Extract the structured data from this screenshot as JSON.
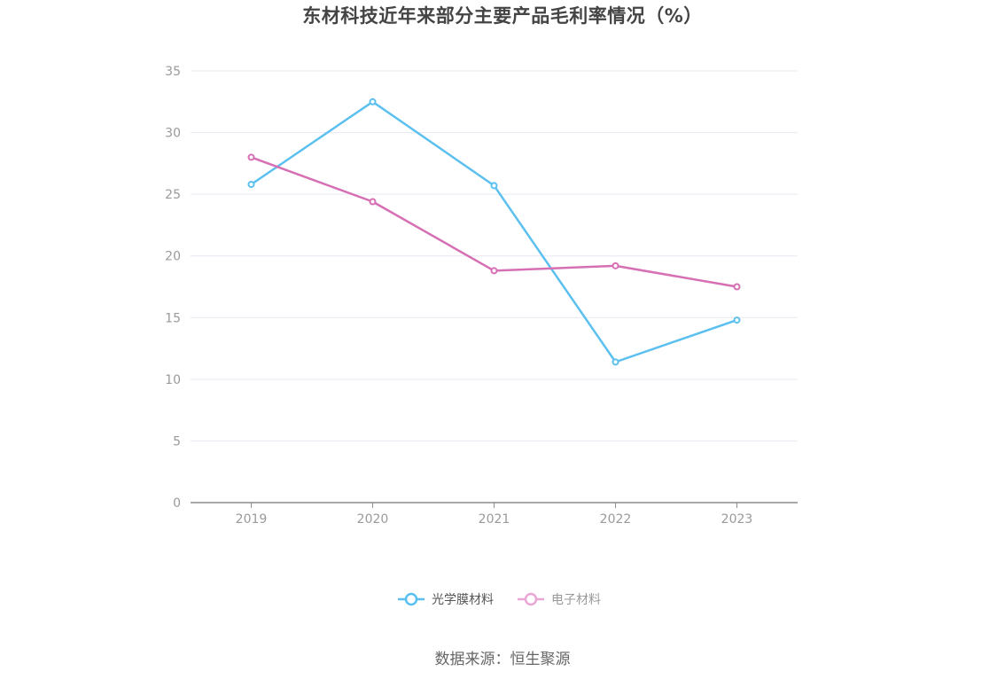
{
  "chart_data": {
    "type": "line",
    "title": "东材科技近年来部分主要产品毛利率情况（%）",
    "x": [
      "2019",
      "2020",
      "2021",
      "2022",
      "2023"
    ],
    "yticks": [
      "0",
      "5",
      "10",
      "15",
      "20",
      "25",
      "30",
      "35"
    ],
    "ylim": [
      0,
      35
    ],
    "grid": true,
    "legend_position": "bottom-center",
    "series": [
      {
        "name": "光学膜材料",
        "color": "#5bc0f0",
        "values": [
          25.8,
          32.5,
          25.7,
          11.4,
          14.8
        ]
      },
      {
        "name": "电子材料",
        "color": "#d66fb4",
        "legend_color": "#e9a8d4",
        "values": [
          28.0,
          24.4,
          18.8,
          19.2,
          17.5
        ]
      }
    ]
  },
  "source": "数据来源：恒生聚源"
}
